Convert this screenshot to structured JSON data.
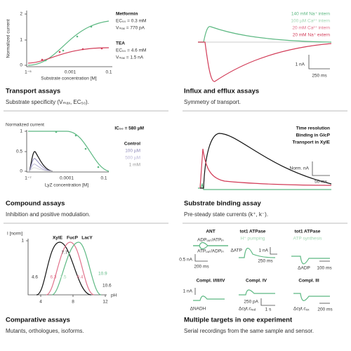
{
  "panels": [
    {
      "title": "Transport assays",
      "description": "Substrate specificity (Vₘₐₓ, EC₅₀).",
      "texts": [
        "2",
        "1",
        "0",
        "Normalized current",
        "1⁻⁵",
        "0.001",
        "0.1",
        "Substrate concentration [M]",
        "Metformin",
        "EC₅₀ = 0.3 mM",
        "Vₘₐₓ = 770 pA",
        "TEA",
        "EC₅₀ = 4.6 mM",
        "Vₘₐₓ = 1.5 nA"
      ]
    },
    {
      "title": "Influx and efflux assays",
      "description": "Symmetry of transport.",
      "texts": [
        "140 mM Na⁺ intern",
        "100 µM Ca²⁺ intern",
        "20 mM Ca²⁺ intern",
        "20 mM Na⁺ extern",
        "1 nA",
        "250 ms"
      ]
    },
    {
      "title": "Compound assays",
      "description": "Inhibition and positive modulation.",
      "texts": [
        "Normalized current",
        "1",
        "0.5",
        "0",
        "1⁻⁷",
        "0.0001",
        "0.1",
        "LyZ concentration [M]",
        "IC₅₀ = 580 µM",
        "Control",
        "100 µM",
        "500 µM",
        "1 mM"
      ]
    },
    {
      "title": "Substrate binding assay",
      "description": "Pre-steady state currents (k⁺, k⁻).",
      "texts": [
        "Time resolution",
        "Binding in GlcP",
        "Transport in XylE",
        "Norm. nA",
        "50 ms"
      ]
    },
    {
      "title": "Comparative assays",
      "description": "Mutants, orthologues, isoforms.",
      "texts": [
        "I [norm]",
        "1",
        "4",
        "8",
        "12",
        "pH",
        "XylE",
        "FucP",
        "LacY",
        "4.6",
        "6.3",
        "7.5",
        "7.7",
        "9.4",
        "10.9",
        "10.6"
      ]
    },
    {
      "title": "Multiple targets in one experiment",
      "description": "Serial recordings from the same sample and sensor.",
      "texts": [
        "ANT",
        "ADPₒᵤₜ/ATPᵢₙ",
        "ATPₒᵤₜ/ADPᵢₙ",
        "0.5 nA",
        "200 ms",
        "tot1 ATPase",
        "H⁺ pumping",
        "ΔATP",
        "1 nA",
        "250 ms",
        "tot1 ATPase",
        "ATP synthesis",
        "ΔADP",
        "100 ms",
        "Compl. I/III/IV",
        "1 nA",
        "ΔNADH",
        "Compl. IV",
        "250 pA",
        "Δcyt.c",
        "red",
        "1 s",
        "Compl. III",
        "Δcyt.c",
        "ox",
        "200 ms"
      ]
    }
  ]
}
